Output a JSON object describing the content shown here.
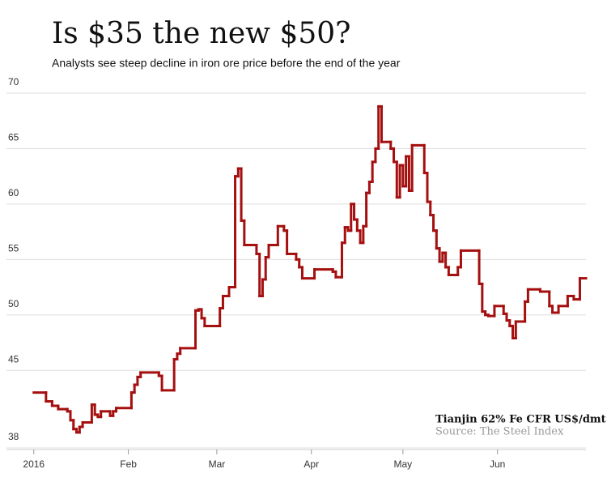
{
  "chart_data": {
    "type": "step",
    "title": "Is $35 the new $50?",
    "subtitle": "Analysts see steep decline in iron ore price before the end of the year",
    "series_label": "Tianjin 62% Fe CFR US$/dmt",
    "source": "Source: The Steel Index",
    "color": "#a50f0f",
    "grid": true,
    "xlim": [
      -1,
      181
    ],
    "xticks": [
      {
        "value": 0,
        "label": "2016"
      },
      {
        "value": 31,
        "label": "Feb"
      },
      {
        "value": 60,
        "label": "Mar"
      },
      {
        "value": 91,
        "label": "Apr"
      },
      {
        "value": 121,
        "label": "May"
      },
      {
        "value": 152,
        "label": "Jun"
      }
    ],
    "ylim": [
      38,
      70
    ],
    "yticks": [
      38,
      45,
      50,
      55,
      60,
      65,
      70
    ],
    "x": [
      0,
      4,
      6,
      8,
      11,
      12,
      13,
      14,
      15,
      16,
      19,
      20,
      21,
      22,
      25,
      26,
      27,
      32,
      33,
      34,
      35,
      41,
      42,
      46,
      47,
      48,
      53,
      54,
      55,
      56,
      61,
      62,
      64,
      66,
      67,
      68,
      69,
      73,
      74,
      75,
      76,
      77,
      80,
      82,
      83,
      86,
      87,
      88,
      92,
      98,
      99,
      101,
      102,
      103,
      104,
      105,
      106,
      107,
      108,
      109,
      110,
      111,
      112,
      113,
      114,
      117,
      118,
      119,
      120,
      121,
      122,
      123,
      124,
      128,
      129,
      130,
      131,
      132,
      133,
      134,
      135,
      136,
      139,
      140,
      146,
      147,
      148,
      149,
      151,
      154,
      155,
      156,
      157,
      158,
      161,
      162,
      166,
      169,
      170,
      172,
      175,
      177,
      179
    ],
    "values": [
      43.0,
      42.2,
      41.8,
      41.5,
      41.3,
      40.5,
      39.7,
      39.4,
      39.9,
      40.3,
      41.9,
      41.0,
      40.8,
      41.3,
      40.9,
      41.3,
      41.6,
      43.0,
      43.7,
      44.4,
      44.8,
      44.5,
      43.2,
      46.0,
      46.5,
      47.0,
      50.4,
      50.5,
      49.7,
      49.0,
      50.6,
      51.7,
      52.5,
      62.5,
      63.2,
      58.5,
      56.3,
      55.5,
      51.7,
      53.2,
      55.2,
      56.3,
      58.0,
      57.6,
      55.5,
      55.0,
      54.3,
      53.3,
      54.1,
      53.9,
      53.4,
      56.5,
      57.9,
      57.6,
      60.0,
      58.6,
      57.6,
      56.5,
      58.0,
      61.0,
      62.0,
      63.8,
      65.0,
      68.8,
      65.6,
      65.0,
      63.8,
      60.6,
      63.5,
      61.6,
      64.3,
      61.2,
      65.3,
      62.8,
      60.2,
      59.0,
      57.6,
      56.0,
      54.8,
      55.6,
      54.3,
      53.6,
      54.3,
      55.8,
      52.8,
      50.3,
      50.0,
      49.9,
      50.8,
      50.1,
      49.5,
      49.0,
      47.9,
      49.4,
      51.2,
      52.3,
      52.1,
      50.8,
      50.2,
      50.8,
      51.7,
      51.4,
      53.3
    ]
  }
}
